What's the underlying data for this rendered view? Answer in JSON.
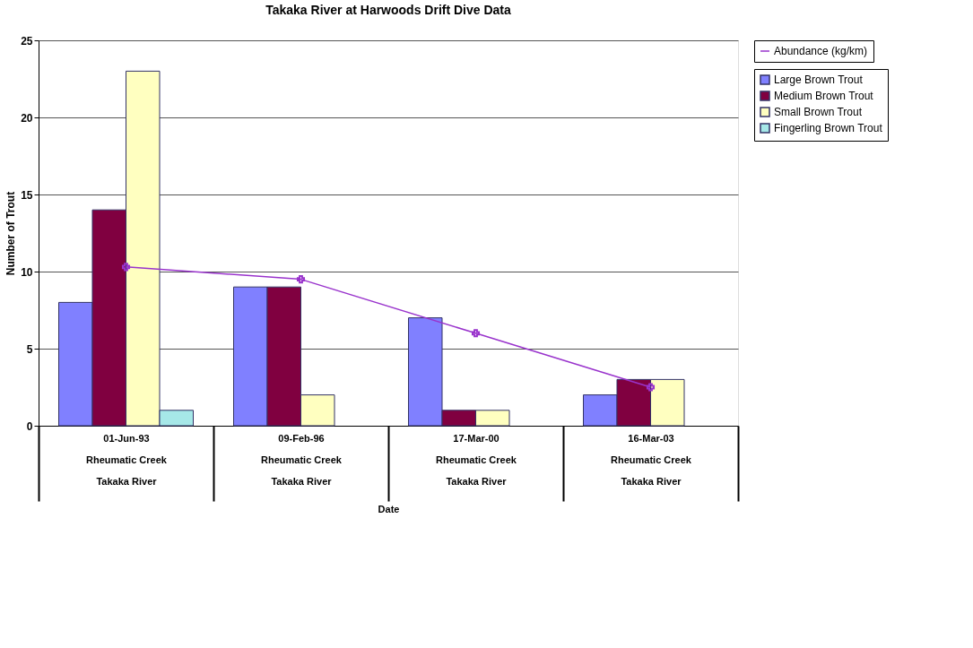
{
  "chart_data": {
    "type": "bar",
    "title": "Takaka River at Harwoods Drift Dive Data",
    "xlabel": "Date",
    "ylabel": "Number of Trout",
    "categories": [
      "01-Jun-93\nRheumatic Creek\nTakaka River",
      "09-Feb-96\nRheumatic Creek\nTakaka River",
      "17-Mar-00\nRheumatic Creek\nTakaka River",
      "16-Mar-03\nRheumatic Creek\nTakaka River"
    ],
    "series": [
      {
        "name": "Large Brown Trout",
        "color": "#8080ff",
        "values": [
          8,
          9,
          7,
          2
        ]
      },
      {
        "name": "Medium Brown Trout",
        "color": "#800040",
        "values": [
          14,
          9,
          1,
          3
        ]
      },
      {
        "name": "Small Brown Trout",
        "color": "#ffffc0",
        "values": [
          23,
          2,
          1,
          3
        ]
      },
      {
        "name": "Fingerling Brown Trout",
        "color": "#a6e8e8",
        "values": [
          1,
          null,
          null,
          null
        ]
      },
      {
        "name": "Abundance (kg/km)",
        "type": "line",
        "color": "#9933cc",
        "marker": "cross",
        "values": [
          10.3,
          9.5,
          6.0,
          2.5
        ]
      }
    ],
    "ylim": [
      0,
      25
    ],
    "yticks": [
      0,
      5,
      10,
      15,
      20,
      25
    ],
    "grid": "y",
    "legend": "right"
  }
}
